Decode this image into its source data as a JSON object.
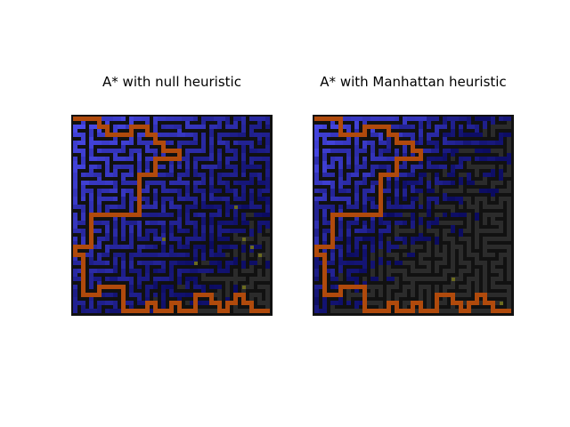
{
  "panels": [
    {
      "title": "A* with null heuristic",
      "seed": 7,
      "path": [
        [
          0,
          0
        ],
        [
          1,
          0
        ],
        [
          2,
          0
        ],
        [
          3,
          0
        ],
        [
          3,
          1
        ],
        [
          4,
          1
        ],
        [
          4,
          2
        ],
        [
          5,
          2
        ],
        [
          6,
          2
        ],
        [
          7,
          2
        ],
        [
          7,
          1
        ],
        [
          8,
          1
        ],
        [
          9,
          1
        ],
        [
          9,
          2
        ],
        [
          10,
          2
        ],
        [
          10,
          3
        ],
        [
          11,
          3
        ],
        [
          11,
          4
        ],
        [
          12,
          4
        ],
        [
          13,
          4
        ],
        [
          13,
          5
        ],
        [
          12,
          5
        ],
        [
          11,
          5
        ],
        [
          10,
          5
        ],
        [
          10,
          6
        ],
        [
          10,
          7
        ],
        [
          9,
          7
        ],
        [
          8,
          7
        ],
        [
          8,
          8
        ],
        [
          8,
          9
        ],
        [
          8,
          10
        ],
        [
          8,
          11
        ],
        [
          8,
          12
        ],
        [
          7,
          12
        ],
        [
          6,
          12
        ],
        [
          5,
          12
        ],
        [
          4,
          12
        ],
        [
          3,
          12
        ],
        [
          2,
          12
        ],
        [
          2,
          13
        ],
        [
          2,
          14
        ],
        [
          2,
          15
        ],
        [
          2,
          16
        ],
        [
          1,
          16
        ],
        [
          0,
          16
        ],
        [
          0,
          17
        ],
        [
          1,
          17
        ],
        [
          1,
          18
        ],
        [
          1,
          19
        ],
        [
          1,
          20
        ],
        [
          1,
          21
        ],
        [
          1,
          22
        ],
        [
          2,
          22
        ],
        [
          3,
          22
        ],
        [
          3,
          21
        ],
        [
          4,
          21
        ],
        [
          5,
          21
        ],
        [
          6,
          21
        ],
        [
          6,
          22
        ],
        [
          6,
          23
        ],
        [
          6,
          24
        ],
        [
          7,
          24
        ],
        [
          8,
          24
        ],
        [
          9,
          24
        ],
        [
          9,
          23
        ],
        [
          10,
          23
        ],
        [
          10,
          24
        ],
        [
          11,
          24
        ],
        [
          12,
          24
        ],
        [
          12,
          23
        ],
        [
          13,
          23
        ],
        [
          13,
          24
        ],
        [
          14,
          24
        ],
        [
          15,
          24
        ],
        [
          15,
          23
        ],
        [
          15,
          22
        ],
        [
          16,
          22
        ],
        [
          17,
          22
        ],
        [
          17,
          23
        ],
        [
          18,
          23
        ],
        [
          18,
          24
        ],
        [
          19,
          24
        ],
        [
          19,
          23
        ],
        [
          20,
          23
        ],
        [
          20,
          22
        ],
        [
          21,
          22
        ],
        [
          21,
          23
        ],
        [
          22,
          23
        ],
        [
          22,
          24
        ],
        [
          23,
          24
        ],
        [
          24,
          24
        ]
      ],
      "explored_ratio": 0.8,
      "unexplored_spots": [
        [
          20,
          11
        ],
        [
          11,
          15
        ],
        [
          21,
          15
        ],
        [
          22,
          16
        ],
        [
          23,
          17
        ],
        [
          15,
          18
        ],
        [
          21,
          21
        ]
      ]
    },
    {
      "title": "A* with Manhattan heuristic",
      "seed": 13,
      "path": [
        [
          0,
          0
        ],
        [
          1,
          0
        ],
        [
          2,
          0
        ],
        [
          3,
          0
        ],
        [
          3,
          1
        ],
        [
          3,
          2
        ],
        [
          4,
          2
        ],
        [
          5,
          2
        ],
        [
          6,
          2
        ],
        [
          6,
          1
        ],
        [
          7,
          1
        ],
        [
          8,
          1
        ],
        [
          9,
          1
        ],
        [
          9,
          2
        ],
        [
          10,
          2
        ],
        [
          10,
          3
        ],
        [
          11,
          3
        ],
        [
          12,
          3
        ],
        [
          12,
          4
        ],
        [
          13,
          4
        ],
        [
          13,
          5
        ],
        [
          12,
          5
        ],
        [
          11,
          5
        ],
        [
          10,
          5
        ],
        [
          10,
          6
        ],
        [
          10,
          7
        ],
        [
          9,
          7
        ],
        [
          8,
          7
        ],
        [
          8,
          8
        ],
        [
          8,
          9
        ],
        [
          8,
          10
        ],
        [
          8,
          11
        ],
        [
          8,
          12
        ],
        [
          7,
          12
        ],
        [
          6,
          12
        ],
        [
          5,
          12
        ],
        [
          4,
          12
        ],
        [
          3,
          12
        ],
        [
          2,
          12
        ],
        [
          2,
          13
        ],
        [
          2,
          14
        ],
        [
          2,
          15
        ],
        [
          2,
          16
        ],
        [
          1,
          16
        ],
        [
          0,
          16
        ],
        [
          0,
          17
        ],
        [
          1,
          17
        ],
        [
          1,
          18
        ],
        [
          1,
          19
        ],
        [
          1,
          20
        ],
        [
          1,
          21
        ],
        [
          1,
          22
        ],
        [
          2,
          22
        ],
        [
          3,
          22
        ],
        [
          3,
          21
        ],
        [
          4,
          21
        ],
        [
          5,
          21
        ],
        [
          6,
          21
        ],
        [
          6,
          22
        ],
        [
          6,
          23
        ],
        [
          6,
          24
        ],
        [
          7,
          24
        ],
        [
          8,
          24
        ],
        [
          9,
          24
        ],
        [
          9,
          23
        ],
        [
          10,
          23
        ],
        [
          10,
          24
        ],
        [
          11,
          24
        ],
        [
          12,
          24
        ],
        [
          12,
          23
        ],
        [
          13,
          23
        ],
        [
          13,
          24
        ],
        [
          14,
          24
        ],
        [
          15,
          24
        ],
        [
          15,
          23
        ],
        [
          15,
          22
        ],
        [
          16,
          22
        ],
        [
          17,
          22
        ],
        [
          17,
          23
        ],
        [
          18,
          23
        ],
        [
          18,
          24
        ],
        [
          19,
          24
        ],
        [
          19,
          23
        ],
        [
          20,
          23
        ],
        [
          20,
          22
        ],
        [
          21,
          22
        ],
        [
          21,
          23
        ],
        [
          22,
          23
        ],
        [
          22,
          24
        ],
        [
          23,
          24
        ],
        [
          24,
          24
        ]
      ],
      "explored_ratio": 0.55,
      "unexplored_spots": [
        [
          17,
          20
        ],
        [
          20,
          22
        ],
        [
          23,
          23
        ]
      ]
    }
  ],
  "colors": {
    "wall": "#111111",
    "explored_light": "#4545e0",
    "explored_dark": "#0b0b60",
    "unexplored": "#2b2b2b",
    "path": "#b04a0c",
    "marker": "#6b6b1e"
  }
}
